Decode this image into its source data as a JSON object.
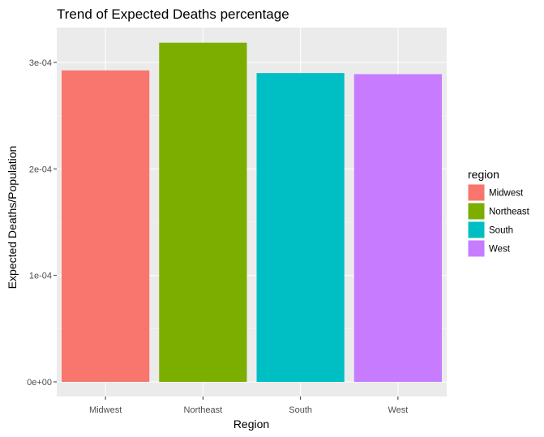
{
  "chart_data": {
    "type": "bar",
    "title": "Trend of Expected Deaths percentage",
    "xlabel": "Region",
    "ylabel": "Expected Deaths/Population",
    "categories": [
      "Midwest",
      "Northeast",
      "South",
      "West"
    ],
    "values": [
      0.0002925,
      0.0003185,
      0.00029,
      0.000289
    ],
    "colors": [
      "#F8766D",
      "#7CAE00",
      "#00BFC4",
      "#C77CFF"
    ],
    "ylim": [
      0,
      0.000323
    ],
    "y_ticks": [
      0,
      0.0001,
      0.0002,
      0.0003
    ],
    "y_tick_labels": [
      "0e+00",
      "1e-04",
      "2e-04",
      "3e-04"
    ],
    "grid": true,
    "panel_background": "#EBEBEB",
    "legend": {
      "title": "region",
      "position": "right",
      "entries": [
        "Midwest",
        "Northeast",
        "South",
        "West"
      ]
    }
  }
}
